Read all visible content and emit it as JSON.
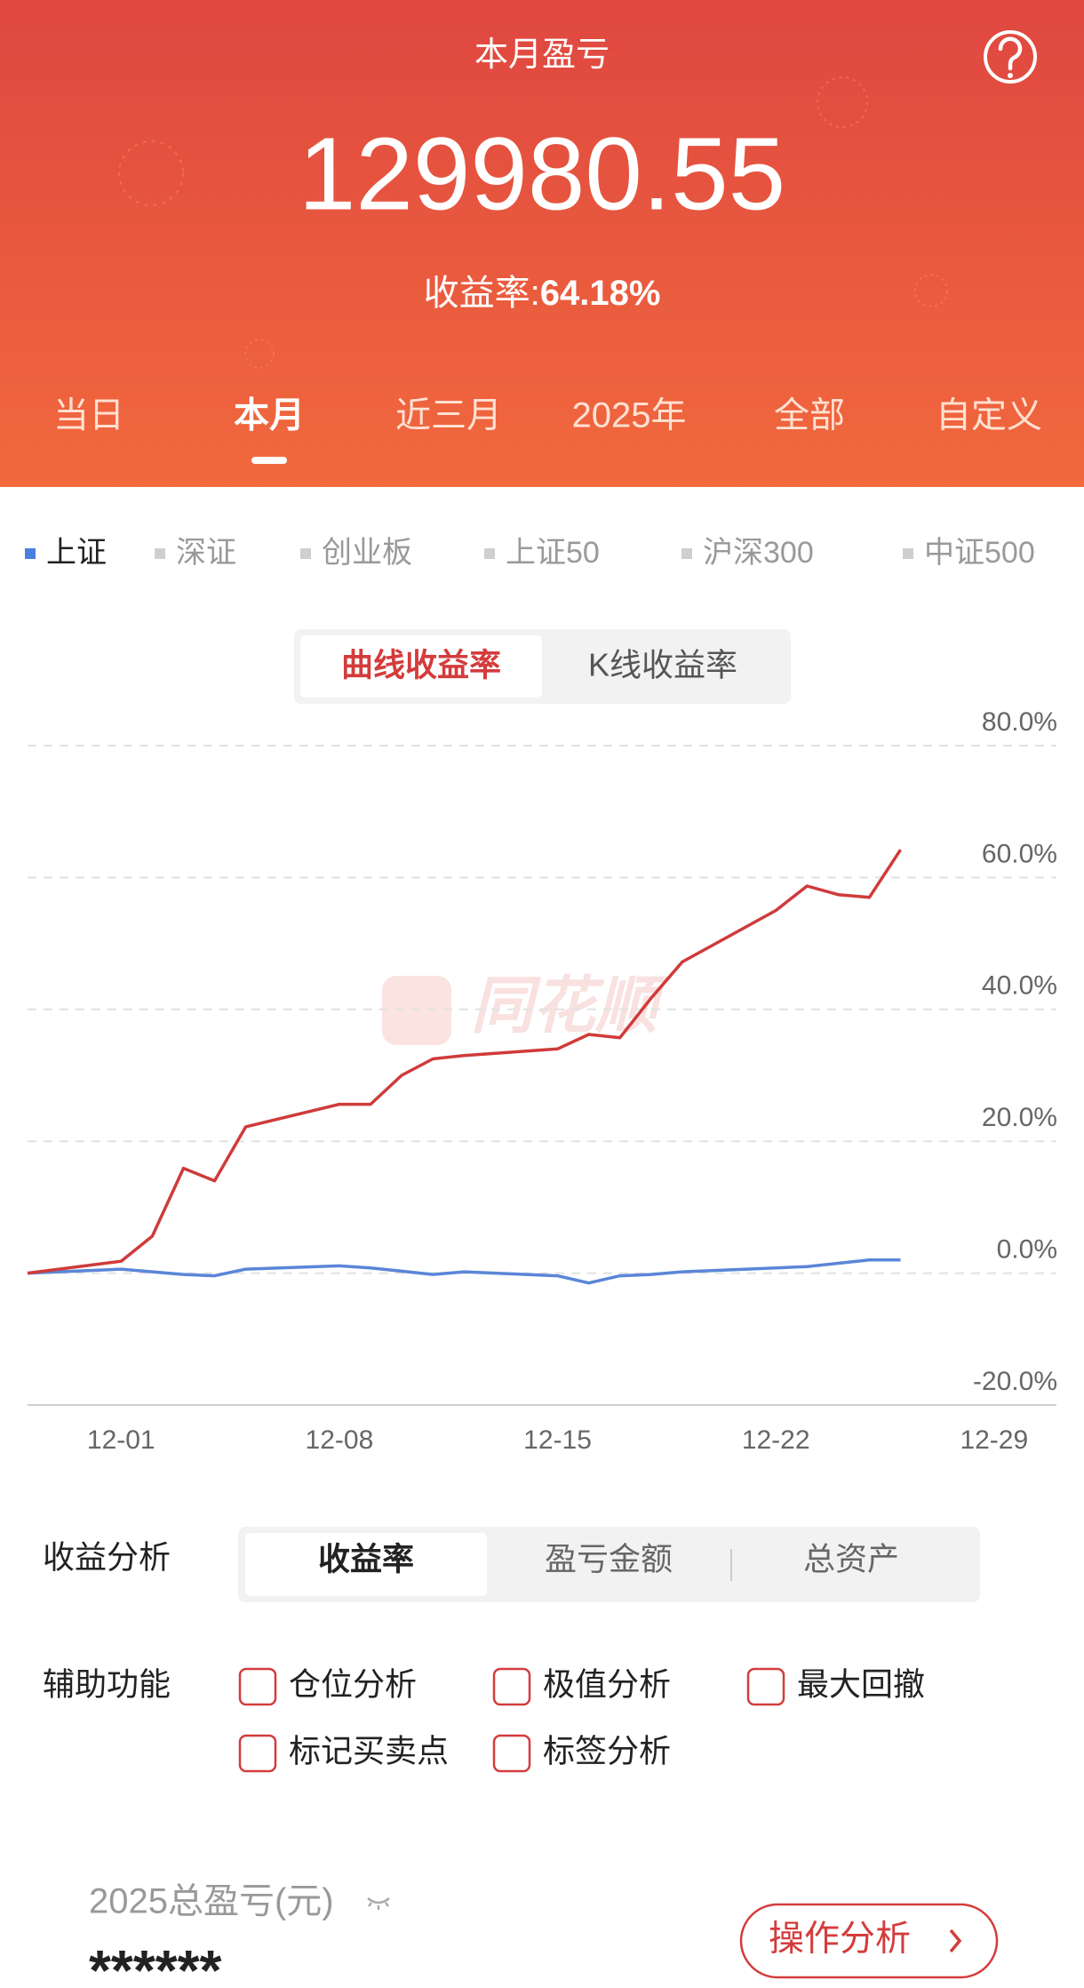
{
  "header": {
    "title": "本月盈亏",
    "value": "129980.55",
    "rate_label": "收益率:",
    "rate": "64.18%"
  },
  "tabs": {
    "items": [
      "当日",
      "本月",
      "近三月",
      "2025年",
      "全部",
      "自定义"
    ],
    "active": 1
  },
  "indices": {
    "items": [
      "上证",
      "深证",
      "创业板",
      "上证50",
      "沪深300",
      "中证500"
    ],
    "active": 0,
    "active_color": "#4a7fe0"
  },
  "chart_mode": {
    "items": [
      "曲线收益率",
      "K线收益率"
    ],
    "active": 0
  },
  "watermark": "同花顺",
  "chart_data": {
    "type": "line",
    "x": [
      "11-28",
      "12-01",
      "12-02",
      "12-03",
      "12-04",
      "12-05",
      "12-08",
      "12-09",
      "12-10",
      "12-11",
      "12-12",
      "12-15",
      "12-16",
      "12-17",
      "12-18",
      "12-19",
      "12-22",
      "12-23",
      "12-24",
      "12-25",
      "12-26"
    ],
    "series": [
      {
        "color": "#cf3b3b",
        "values": [
          0,
          1.8,
          5.6,
          15.9,
          14,
          22.2,
          25.6,
          25.6,
          30,
          32.5,
          33,
          34,
          36.2,
          35.7,
          41.7,
          47.2,
          55,
          58.7,
          57.4,
          57,
          64.2
        ]
      },
      {
        "color": "#5a86d8",
        "values": [
          0,
          0.6,
          0.2,
          -0.2,
          -0.4,
          0.6,
          1.1,
          0.8,
          0.3,
          -0.2,
          0.2,
          -0.4,
          -1.5,
          -0.4,
          -0.2,
          0.2,
          0.8,
          1,
          1.5,
          2,
          2
        ]
      }
    ],
    "xlim": [
      "11-28",
      "12-31"
    ],
    "xticks": [
      "12-01",
      "12-08",
      "12-15",
      "12-22",
      "12-29"
    ],
    "ylim": [
      -20,
      80
    ],
    "yticks": [
      {
        "value": -20,
        "label": "-20.0%"
      },
      {
        "value": 0,
        "label": "0.0%"
      },
      {
        "value": 20,
        "label": "20.0%"
      },
      {
        "value": 40,
        "label": "40.0%"
      },
      {
        "value": 60,
        "label": "60.0%"
      },
      {
        "value": 80,
        "label": "80.0%"
      }
    ],
    "grid": true
  },
  "analysis": {
    "label": "收益分析",
    "items": [
      "收益率",
      "盈亏金额",
      "总资产"
    ],
    "active": 0
  },
  "aux": {
    "label": "辅助功能",
    "items": [
      "仓位分析",
      "极值分析",
      "最大回撤",
      "标记买卖点",
      "标签分析"
    ]
  },
  "footer": {
    "label": "2025总盈亏(元)",
    "value": "******",
    "button": "操作分析"
  }
}
